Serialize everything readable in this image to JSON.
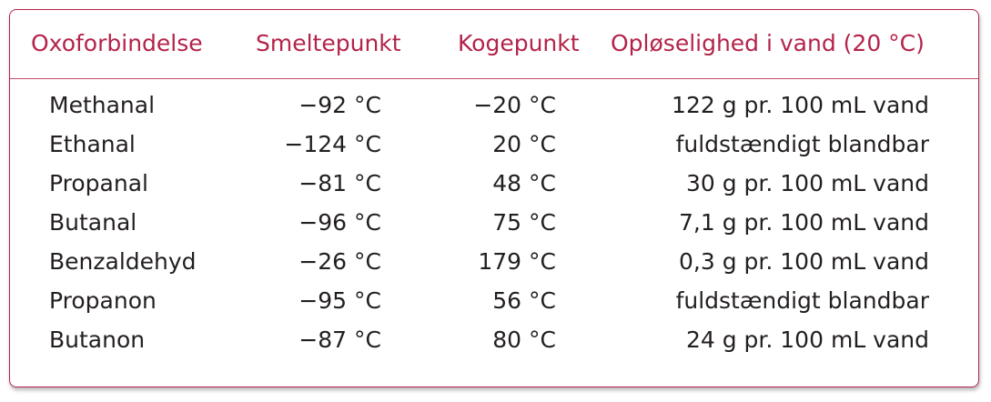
{
  "table": {
    "headers": [
      "Oxoforbindelse",
      "Smeltepunkt",
      "Kogepunkt",
      "Opløselighed i vand (20 °C)"
    ],
    "rows": [
      [
        "Methanal",
        "−92 °C",
        "−20 °C",
        "122 g pr. 100 mL vand"
      ],
      [
        "Ethanal",
        "−124 °C",
        "20 °C",
        "fuldstændigt blandbar"
      ],
      [
        "Propanal",
        "−81 °C",
        "48 °C",
        "30 g pr. 100 mL vand"
      ],
      [
        "Butanal",
        "−96 °C",
        "75 °C",
        "7,1 g pr. 100 mL vand"
      ],
      [
        "Benzaldehyd",
        "−26 °C",
        "179 °C",
        "0,3 g pr. 100 mL vand"
      ],
      [
        "Propanon",
        "−95 °C",
        "56 °C",
        "fuldstændigt blandbar"
      ],
      [
        "Butanon",
        "−87 °C",
        "80 °C",
        "24 g pr. 100 mL vand"
      ]
    ]
  },
  "colors": {
    "accent": "#b4234a",
    "text": "#231f20"
  }
}
